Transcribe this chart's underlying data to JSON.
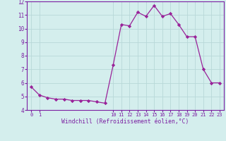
{
  "x": [
    0,
    1,
    2,
    3,
    4,
    5,
    6,
    7,
    8,
    9,
    10,
    11,
    12,
    13,
    14,
    15,
    16,
    17,
    18,
    19,
    20,
    21,
    22,
    23
  ],
  "y": [
    5.7,
    5.1,
    4.9,
    4.8,
    4.8,
    4.7,
    4.7,
    4.7,
    4.6,
    4.5,
    7.3,
    10.3,
    10.2,
    11.2,
    10.9,
    11.7,
    10.9,
    11.1,
    10.3,
    9.4,
    9.4,
    7.0,
    6.0,
    6.0
  ],
  "line_color": "#992299",
  "marker": "D",
  "markersize": 2.2,
  "linewidth": 0.9,
  "bg_color": "#d4eeed",
  "grid_color": "#b8d8d8",
  "xlabel": "Windchill (Refroidissement éolien,°C)",
  "xlabel_color": "#7b1fa2",
  "tick_color": "#7b1fa2",
  "ylim": [
    4,
    12
  ],
  "xlim": [
    -0.5,
    23.5
  ],
  "yticks": [
    4,
    5,
    6,
    7,
    8,
    9,
    10,
    11,
    12
  ],
  "xticks": [
    0,
    1,
    10,
    11,
    12,
    13,
    14,
    15,
    16,
    17,
    18,
    19,
    20,
    21,
    22,
    23
  ]
}
